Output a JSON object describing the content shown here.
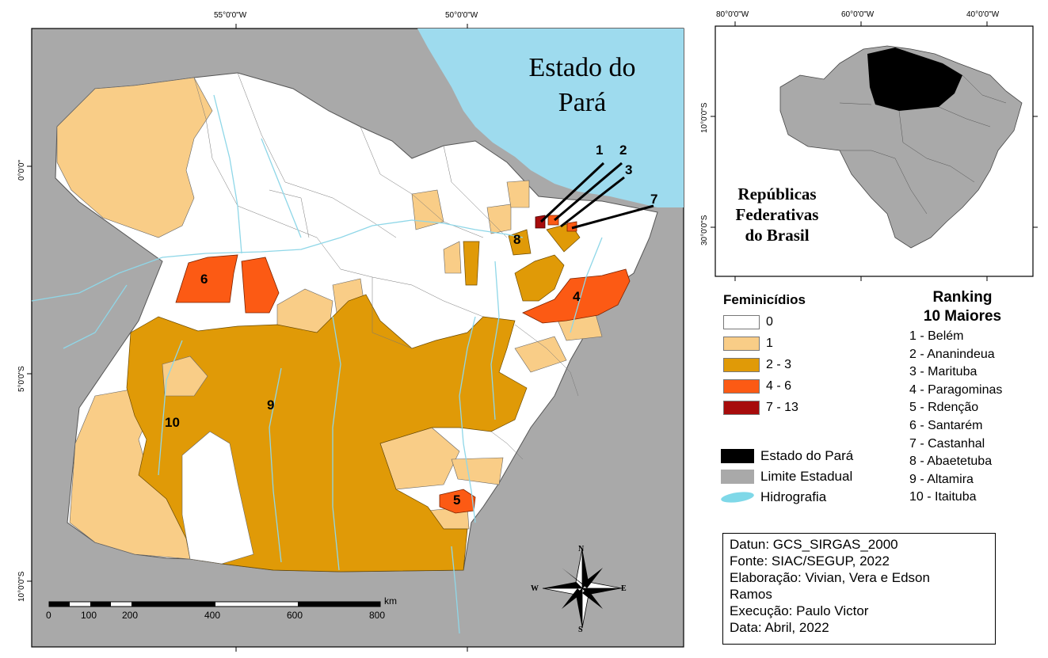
{
  "map": {
    "title_line1": "Estado do",
    "title_line2": "Pará",
    "top_ticks": [
      "55°0'0\"W",
      "50°0'0\"W"
    ],
    "left_ticks": [
      "0°0'0\"",
      "5°0'0\"S",
      "10°0'0\"S"
    ],
    "scale": {
      "labels": [
        "0",
        "100",
        "200",
        "400",
        "600",
        "800"
      ],
      "unit": "km"
    },
    "rank_labels": [
      "1",
      "2",
      "3",
      "7",
      "8",
      "6",
      "4",
      "9",
      "10",
      "5"
    ],
    "compass": {
      "n": "N",
      "s": "S",
      "e": "E",
      "w": "W"
    }
  },
  "inset": {
    "label_line1": "Repúblicas",
    "label_line2": "Federativas",
    "label_line3": "do Brasil",
    "top_ticks": [
      "80°0'0\"W",
      "60°0'0\"W",
      "40°0'0\"W"
    ],
    "side_ticks": [
      "10°0'0\"S",
      "30°0'0\"S"
    ]
  },
  "legend": {
    "title": "Feminicídios",
    "classes": [
      {
        "label": "0",
        "color": "#ffffff"
      },
      {
        "label": "1",
        "color": "#f9cd87"
      },
      {
        "label": "2 - 3",
        "color": "#e09a07"
      },
      {
        "label": "4 - 6",
        "color": "#fc5a14"
      },
      {
        "label": "7 - 13",
        "color": "#a70c0c"
      }
    ]
  },
  "other_legend": [
    {
      "label": "Estado do Pará",
      "color": "#000000"
    },
    {
      "label": "Limite Estadual",
      "color": "#a9a9a9"
    },
    {
      "label": "Hidrografia",
      "color": "#7fd8e8"
    }
  ],
  "ranking": {
    "title_line1": "Ranking",
    "title_line2": "10 Maiores",
    "items": [
      "1 - Belém",
      "2 - Ananindeua",
      "3 - Marituba",
      "4 - Paragominas",
      "5 - Rdenção",
      "6 - Santarém",
      "7 - Castanhal",
      "8 - Abaetetuba",
      "9 - Altamira",
      "10 - Itaituba"
    ]
  },
  "metadata": {
    "datum": "Datun: GCS_SIRGAS_2000",
    "source": "Fonte: SIAC/SEGUP, 2022",
    "authors_line1": "Elaboração: Vivian, Vera e Edson",
    "authors_line2": "Ramos",
    "execution": "Execução: Paulo Victor",
    "date": "Data: Abril, 2022"
  }
}
